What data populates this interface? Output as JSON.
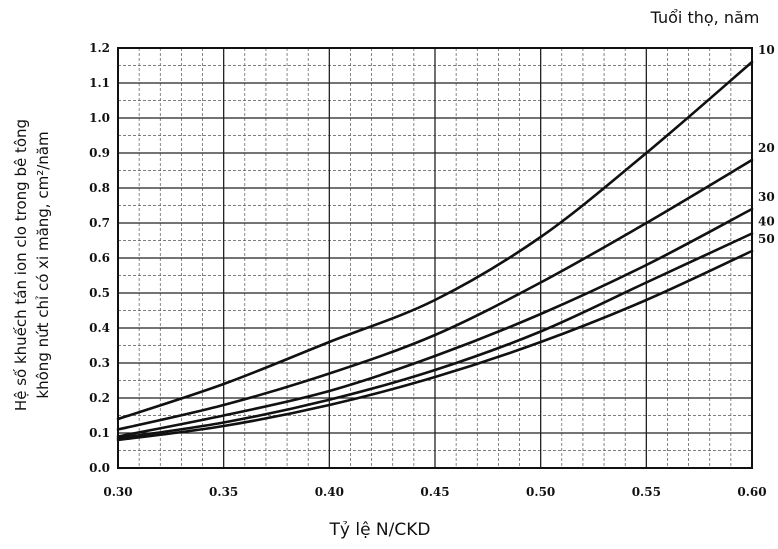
{
  "chart_data": {
    "type": "line",
    "title": "",
    "xlabel": "Tỷ lệ N/CKD",
    "ylabel_line1": "Hệ số khuếch tán ion clo trong bê tông",
    "ylabel_line2": "không nứt chỉ có xi măng, cm²/năm",
    "legend_title": "Tuổi thọ, năm",
    "xlim": [
      0.3,
      0.6
    ],
    "ylim": [
      0.0,
      1.2
    ],
    "grid": true,
    "x_ticks": [
      "0.30",
      "0.35",
      "0.40",
      "0.45",
      "0.50",
      "0.55",
      "0.60"
    ],
    "y_ticks": [
      "0.0",
      "0.1",
      "0.2",
      "0.3",
      "0.4",
      "0.5",
      "0.6",
      "0.7",
      "0.8",
      "0.9",
      "1.0",
      "1.1",
      "1.2"
    ],
    "x": [
      0.3,
      0.35,
      0.4,
      0.45,
      0.5,
      0.55,
      0.6
    ],
    "series": [
      {
        "name": "10",
        "values": [
          0.14,
          0.24,
          0.36,
          0.48,
          0.66,
          0.9,
          1.16
        ]
      },
      {
        "name": "20",
        "values": [
          0.11,
          0.18,
          0.27,
          0.38,
          0.53,
          0.7,
          0.88
        ]
      },
      {
        "name": "30",
        "values": [
          0.09,
          0.15,
          0.22,
          0.32,
          0.44,
          0.58,
          0.74
        ]
      },
      {
        "name": "40",
        "values": [
          0.085,
          0.13,
          0.195,
          0.28,
          0.39,
          0.53,
          0.67
        ]
      },
      {
        "name": "50",
        "values": [
          0.08,
          0.12,
          0.18,
          0.26,
          0.36,
          0.48,
          0.62
        ]
      }
    ]
  }
}
